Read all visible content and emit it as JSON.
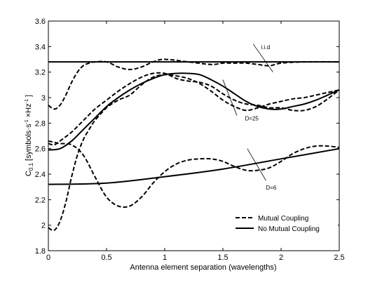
{
  "chart_data": {
    "type": "line",
    "title": "",
    "xlabel": "Antenna element separation (wavelengths)",
    "ylabel_main": "C",
    "ylabel_sub": "0.1",
    "ylabel_rest": "[symbols·s",
    "ylabel_sup1": "-1",
    "ylabel_mid": " ×Hz",
    "ylabel_sup2": "-1",
    "ylabel_end": "]",
    "xlim": [
      0,
      2.5
    ],
    "ylim": [
      1.8,
      3.6
    ],
    "xticks": [
      0,
      0.5,
      1,
      1.5,
      2,
      2.5
    ],
    "xtick_labels": [
      "0",
      "0.5",
      "1",
      "1.5",
      "2",
      "2.5"
    ],
    "yticks": [
      1.8,
      2.0,
      2.2,
      2.4,
      2.6,
      2.8,
      3.0,
      3.2,
      3.4,
      3.6
    ],
    "ytick_labels": [
      "1.8",
      "2",
      "2.2",
      "2.4",
      "2.6",
      "2.8",
      "3",
      "3.2",
      "3.4",
      "3.6"
    ],
    "grid": false,
    "legend_position": "bottom-right",
    "legend": [
      {
        "label": "Mutual Coupling",
        "style": "dashed"
      },
      {
        "label": "No Mutual Coupling",
        "style": "solid"
      }
    ],
    "series": [
      {
        "group": "i.i.d",
        "style": "solid",
        "x": [
          0,
          2.5
        ],
        "y": [
          3.28,
          3.28
        ]
      },
      {
        "group": "i.i.d",
        "style": "dashed",
        "x": [
          0,
          0.05,
          0.1,
          0.15,
          0.2,
          0.25,
          0.3,
          0.35,
          0.4,
          0.5,
          0.6,
          0.7,
          0.8,
          0.9,
          1.0,
          1.2,
          1.4,
          1.5,
          1.6,
          1.7,
          1.8,
          1.9,
          2.0,
          2.2,
          2.5
        ],
        "y": [
          2.94,
          2.91,
          2.94,
          3.02,
          3.12,
          3.2,
          3.25,
          3.27,
          3.28,
          3.28,
          3.24,
          3.22,
          3.24,
          3.28,
          3.3,
          3.28,
          3.26,
          3.27,
          3.27,
          3.27,
          3.26,
          3.25,
          3.27,
          3.28,
          3.28
        ]
      },
      {
        "group": "D=25",
        "style": "solid",
        "x": [
          0,
          0.1,
          0.2,
          0.3,
          0.4,
          0.5,
          0.6,
          0.7,
          0.8,
          0.9,
          1.0,
          1.1,
          1.2,
          1.3,
          1.4,
          1.5,
          1.6,
          1.7,
          1.8,
          1.9,
          2.0,
          2.1,
          2.2,
          2.3,
          2.4,
          2.5
        ],
        "y": [
          2.59,
          2.6,
          2.66,
          2.75,
          2.84,
          2.93,
          3.0,
          3.06,
          3.11,
          3.15,
          3.18,
          3.19,
          3.19,
          3.18,
          3.14,
          3.09,
          3.03,
          2.97,
          2.93,
          2.91,
          2.91,
          2.93,
          2.95,
          2.98,
          3.02,
          3.06
        ]
      },
      {
        "group": "D=25",
        "style": "dashed",
        "x": [
          0,
          0.05,
          0.1,
          0.2,
          0.3,
          0.4,
          0.5,
          0.6,
          0.7,
          0.8,
          0.9,
          1.0,
          1.1,
          1.2,
          1.3,
          1.4,
          1.5,
          1.6,
          1.7,
          1.8,
          1.9,
          2.0,
          2.1,
          2.2,
          2.3,
          2.4,
          2.5
        ],
        "y": [
          2.64,
          2.63,
          2.66,
          2.73,
          2.82,
          2.91,
          2.98,
          3.05,
          3.11,
          3.16,
          3.19,
          3.19,
          3.15,
          3.13,
          3.12,
          3.09,
          3.03,
          2.98,
          2.95,
          2.94,
          2.92,
          2.92,
          2.9,
          2.9,
          2.93,
          2.99,
          3.06
        ]
      },
      {
        "group": "D=6",
        "style": "solid",
        "x": [
          0,
          0.5,
          1.0,
          1.5,
          2.0,
          2.5
        ],
        "y": [
          2.32,
          2.33,
          2.38,
          2.44,
          2.52,
          2.6
        ]
      },
      {
        "group": "D=6",
        "style": "dashed",
        "x": [
          0,
          0.05,
          0.1,
          0.15,
          0.2,
          0.25,
          0.3,
          0.35,
          0.4,
          0.5,
          0.6,
          0.7,
          0.8,
          0.9,
          1.0,
          1.1,
          1.2,
          1.3,
          1.4,
          1.5,
          1.6,
          1.7,
          1.8,
          1.9,
          2.0,
          2.1,
          2.2,
          2.3,
          2.4,
          2.5
        ],
        "y": [
          1.98,
          1.96,
          2.03,
          2.18,
          2.38,
          2.55,
          2.67,
          2.75,
          2.82,
          2.92,
          2.98,
          3.02,
          3.1,
          3.16,
          3.18,
          3.17,
          3.15,
          3.11,
          3.05,
          2.98,
          2.93,
          2.9,
          2.92,
          2.95,
          2.97,
          2.99,
          3.0,
          3.02,
          3.04,
          3.06
        ]
      },
      {
        "group": "D=6",
        "style": "dashed",
        "x": [
          0,
          0.05,
          0.1,
          0.2,
          0.3,
          0.4,
          0.5,
          0.6,
          0.7,
          0.8,
          0.9,
          1.0,
          1.1,
          1.2,
          1.3,
          1.4,
          1.5,
          1.6,
          1.7,
          1.8,
          1.9,
          2.0,
          2.1,
          2.2,
          2.3,
          2.4,
          2.5
        ],
        "y": [
          2.66,
          2.65,
          2.64,
          2.63,
          2.55,
          2.38,
          2.22,
          2.15,
          2.15,
          2.22,
          2.33,
          2.42,
          2.48,
          2.51,
          2.52,
          2.52,
          2.5,
          2.46,
          2.43,
          2.43,
          2.45,
          2.5,
          2.56,
          2.6,
          2.62,
          2.62,
          2.61
        ]
      }
    ],
    "annotations": [
      {
        "text": "i.i.d",
        "x": 1.83,
        "y": 3.38
      },
      {
        "text": "D=25",
        "x": 1.69,
        "y": 2.82
      },
      {
        "text": "D=6",
        "x": 1.87,
        "y": 2.28
      }
    ],
    "pointer_lines": [
      {
        "x1": 1.76,
        "y1": 3.42,
        "x2": 1.93,
        "y2": 3.2
      },
      {
        "x1": 1.5,
        "y1": 3.14,
        "x2": 1.62,
        "y2": 2.86
      },
      {
        "x1": 1.71,
        "y1": 2.6,
        "x2": 1.87,
        "y2": 2.35
      }
    ]
  }
}
